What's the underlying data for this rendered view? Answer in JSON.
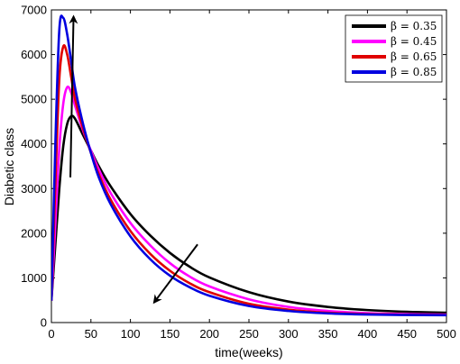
{
  "chart_data": {
    "type": "line",
    "title": "",
    "xlabel": "time(weeks)",
    "ylabel": "Diabetic class",
    "xlim": [
      0,
      500
    ],
    "ylim": [
      0,
      7000
    ],
    "xticks": [
      0,
      50,
      100,
      150,
      200,
      250,
      300,
      350,
      400,
      450,
      500
    ],
    "yticks": [
      0,
      1000,
      2000,
      3000,
      4000,
      5000,
      6000,
      7000
    ],
    "grid": false,
    "legend_position": "top-right",
    "series": [
      {
        "name": "β = 0.35",
        "color": "#000000",
        "x": [
          0,
          5,
          10,
          15,
          20,
          25,
          30,
          40,
          50,
          60,
          75,
          100,
          125,
          150,
          175,
          200,
          250,
          300,
          350,
          400,
          450,
          500
        ],
        "y": [
          490,
          1750,
          3000,
          3950,
          4450,
          4620,
          4560,
          4200,
          3850,
          3500,
          3050,
          2430,
          1950,
          1560,
          1250,
          1010,
          680,
          470,
          350,
          280,
          240,
          220
        ]
      },
      {
        "name": "β = 0.45",
        "color": "#ff00ff",
        "x": [
          0,
          5,
          10,
          15,
          20,
          25,
          30,
          40,
          50,
          60,
          75,
          100,
          125,
          150,
          175,
          200,
          250,
          300,
          350,
          400,
          450,
          500
        ],
        "y": [
          490,
          2200,
          3900,
          4900,
          5270,
          5150,
          4850,
          4300,
          3850,
          3430,
          2900,
          2230,
          1730,
          1330,
          1030,
          810,
          520,
          350,
          260,
          210,
          190,
          180
        ]
      },
      {
        "name": "β = 0.65",
        "color": "#e00000",
        "x": [
          0,
          5,
          10,
          15,
          20,
          25,
          30,
          40,
          50,
          60,
          75,
          100,
          125,
          150,
          175,
          200,
          250,
          300,
          350,
          400,
          450,
          500
        ],
        "y": [
          490,
          3100,
          5450,
          6180,
          6000,
          5500,
          5000,
          4350,
          3800,
          3320,
          2750,
          2050,
          1540,
          1160,
          880,
          680,
          420,
          290,
          220,
          190,
          175,
          170
        ]
      },
      {
        "name": "β = 0.85",
        "color": "#0000e0",
        "x": [
          0,
          5,
          10,
          15,
          20,
          25,
          30,
          40,
          50,
          60,
          75,
          100,
          125,
          150,
          175,
          200,
          250,
          300,
          350,
          400,
          450,
          500
        ],
        "y": [
          490,
          4000,
          6550,
          6820,
          6450,
          5850,
          5250,
          4450,
          3800,
          3250,
          2650,
          1930,
          1420,
          1050,
          790,
          600,
          370,
          260,
          205,
          180,
          170,
          165
        ]
      }
    ],
    "annotations": [
      {
        "type": "arrow",
        "from": [
          24,
          3250
        ],
        "to": [
          28,
          6850
        ]
      },
      {
        "type": "arrow",
        "from": [
          185,
          1750
        ],
        "to": [
          130,
          450
        ]
      }
    ]
  }
}
